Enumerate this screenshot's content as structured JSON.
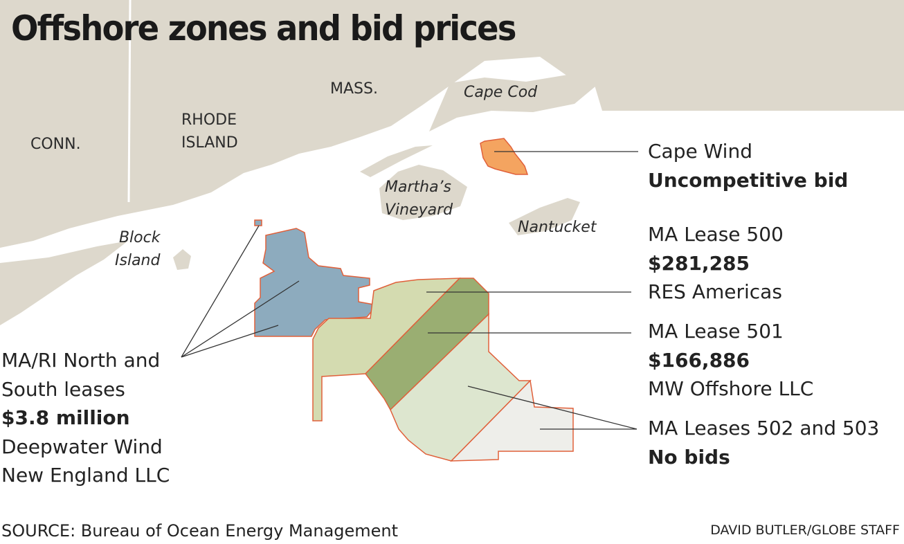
{
  "title": "Offshore zones and bid prices",
  "places": {
    "conn": "CONN.",
    "rhode_island": [
      "RHODE",
      "ISLAND"
    ],
    "mass": "MASS.",
    "cape_cod": "Cape Cod",
    "marthas_vineyard": [
      "Martha’s",
      "Vineyard"
    ],
    "nantucket": "Nantucket",
    "block_island": [
      "Block",
      "Island"
    ]
  },
  "zones": {
    "cape_wind": {
      "name": "Cape Wind",
      "bid": "Uncompetitive bid",
      "color": "#f4a460"
    },
    "ma_ri": {
      "lines": [
        "MA/RI North and",
        "South leases"
      ],
      "bid": "$3.8 million",
      "bidder": [
        "Deepwater Wind",
        "New England LLC"
      ],
      "color": "#8dabbe"
    },
    "lease_500": {
      "name": "MA Lease 500",
      "bid": "$281,285",
      "bidder": "RES Americas",
      "color": "#d4dbb0"
    },
    "lease_501": {
      "name": "MA Lease 501",
      "bid": "$166,886",
      "bidder": "MW Offshore LLC",
      "color": "#9aae72"
    },
    "lease_502_503": {
      "name": "MA Leases 502 and 503",
      "bid": "No bids",
      "color_502": "#dde6cf",
      "color_503": "#eeeeea"
    }
  },
  "colors": {
    "land": "#ddd8cc",
    "water": "#ffffff",
    "outline": "#e0603a"
  },
  "source": "SOURCE: Bureau of Ocean Energy Management",
  "credit": "DAVID BUTLER/GLOBE STAFF"
}
